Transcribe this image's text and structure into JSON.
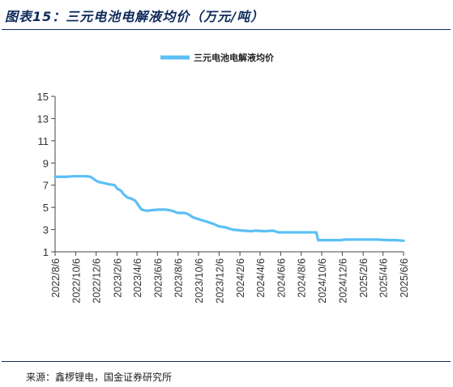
{
  "figure": {
    "title": "图表15：三元电池电解液均价（万元/吨）",
    "source": "来源：鑫椤锂电，国金证券研究所"
  },
  "colors": {
    "line": "#5bc0f5",
    "axis": "#444444",
    "title": "#0f2b5b"
  },
  "chart_data": {
    "type": "line",
    "title": "",
    "xlabel": "",
    "ylabel": "",
    "ylim": [
      1,
      15
    ],
    "yticks": [
      1,
      3,
      5,
      7,
      9,
      11,
      13,
      15
    ],
    "xlim": [
      "2022-08-06",
      "2025-06-06"
    ],
    "xtick_labels": [
      "2022/8/6",
      "2022/10/6",
      "2022/12/6",
      "2023/2/6",
      "2023/4/6",
      "2023/6/6",
      "2023/8/6",
      "2023/10/6",
      "2023/12/6",
      "2024/2/6",
      "2024/4/6",
      "2024/6/6",
      "2024/8/6",
      "2024/10/6",
      "2024/12/6",
      "2025/2/6",
      "2025/4/6",
      "2025/6/6"
    ],
    "xtick_dates": [
      "2022-08-06",
      "2022-10-06",
      "2022-12-06",
      "2023-02-06",
      "2023-04-06",
      "2023-06-06",
      "2023-08-06",
      "2023-10-06",
      "2023-12-06",
      "2024-02-06",
      "2024-04-06",
      "2024-06-06",
      "2024-08-06",
      "2024-10-06",
      "2024-12-06",
      "2025-02-06",
      "2025-04-06",
      "2025-06-06"
    ],
    "grid": false,
    "legend": "top-center",
    "series": [
      {
        "name": "三元电池电解液均价",
        "x": [
          "2022-08-06",
          "2022-09-05",
          "2022-10-01",
          "2022-11-05",
          "2022-11-20",
          "2022-12-01",
          "2022-12-12",
          "2022-12-28",
          "2023-01-10",
          "2023-01-30",
          "2023-02-06",
          "2023-02-18",
          "2023-02-25",
          "2023-03-08",
          "2023-03-20",
          "2023-04-01",
          "2023-04-10",
          "2023-04-20",
          "2023-05-05",
          "2023-05-20",
          "2023-06-10",
          "2023-07-01",
          "2023-07-20",
          "2023-08-05",
          "2023-08-25",
          "2023-09-05",
          "2023-09-20",
          "2023-10-10",
          "2023-11-01",
          "2023-11-20",
          "2023-12-05",
          "2023-12-25",
          "2024-01-15",
          "2024-02-15",
          "2024-03-10",
          "2024-03-25",
          "2024-04-20",
          "2024-05-15",
          "2024-05-30",
          "2024-06-20",
          "2024-07-30",
          "2024-08-30",
          "2024-09-20",
          "2024-09-25",
          "2024-10-30",
          "2024-11-30",
          "2024-12-15",
          "2025-01-20",
          "2025-02-20",
          "2025-03-20",
          "2025-04-20",
          "2025-05-15",
          "2025-06-06"
        ],
        "y": [
          7.75,
          7.75,
          7.8,
          7.8,
          7.75,
          7.5,
          7.3,
          7.2,
          7.1,
          7.0,
          6.7,
          6.5,
          6.2,
          5.9,
          5.8,
          5.6,
          5.2,
          4.8,
          4.7,
          4.75,
          4.8,
          4.8,
          4.7,
          4.5,
          4.5,
          4.4,
          4.1,
          3.9,
          3.7,
          3.5,
          3.3,
          3.2,
          3.0,
          2.9,
          2.85,
          2.9,
          2.85,
          2.9,
          2.75,
          2.75,
          2.75,
          2.75,
          2.75,
          2.05,
          2.05,
          2.05,
          2.1,
          2.1,
          2.1,
          2.1,
          2.05,
          2.05,
          2.0
        ]
      }
    ]
  }
}
